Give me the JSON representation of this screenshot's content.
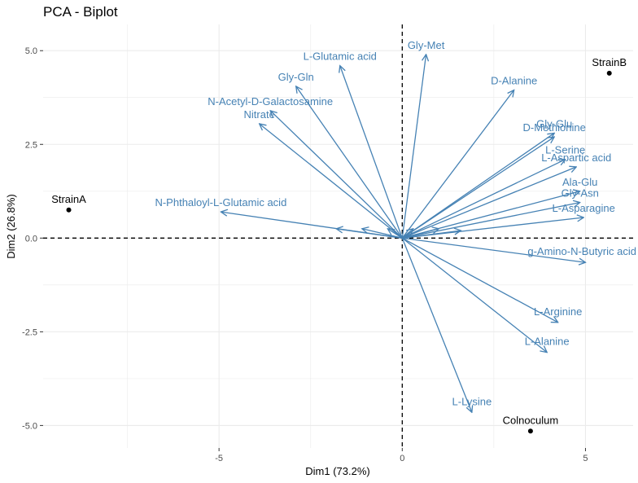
{
  "chart_data": {
    "type": "scatter",
    "title": "PCA - Biplot",
    "xlabel": "Dim1 (73.2%)",
    "ylabel": "Dim2 (26.8%)",
    "xlim": [
      -9.8,
      6.3
    ],
    "ylim": [
      -5.6,
      5.7
    ],
    "x_ticks": [
      -5,
      0,
      5
    ],
    "x_tick_labels": [
      "-5",
      "0",
      "5"
    ],
    "y_ticks": [
      -5.0,
      -2.5,
      0.0,
      2.5,
      5.0
    ],
    "y_tick_labels": [
      "-5.0",
      "-2.5",
      "0.0",
      "2.5",
      "5.0"
    ],
    "grid": true,
    "reference_lines": {
      "x": 0,
      "y": 0,
      "style": "dashed"
    },
    "colors": {
      "variables": "#4682b4",
      "individuals": "#000000",
      "grid": "#ebebeb",
      "reference": "#000000"
    },
    "individuals": [
      {
        "name": "StrainA",
        "x": -9.1,
        "y": 0.75
      },
      {
        "name": "StrainB",
        "x": 5.65,
        "y": 4.4
      },
      {
        "name": "Colnoculum",
        "x": 3.5,
        "y": -5.15
      }
    ],
    "variables": [
      {
        "name": "Gly-Met",
        "x": 0.65,
        "y": 4.9
      },
      {
        "name": "L-Glutamic acid",
        "x": -1.7,
        "y": 4.6
      },
      {
        "name": "Gly-Gln",
        "x": -2.9,
        "y": 4.05
      },
      {
        "name": "N-Acetyl-D-Galactosamine",
        "x": -3.6,
        "y": 3.4
      },
      {
        "name": "Nitrate",
        "x": -3.9,
        "y": 3.05
      },
      {
        "name": "D-Alanine",
        "x": 3.05,
        "y": 3.95
      },
      {
        "name": "Gly-Glu",
        "x": 4.15,
        "y": 2.8
      },
      {
        "name": "D-Methionine",
        "x": 4.15,
        "y": 2.7
      },
      {
        "name": "L-Serine",
        "x": 4.45,
        "y": 2.1
      },
      {
        "name": "L-Aspartic acid",
        "x": 4.75,
        "y": 1.9
      },
      {
        "name": "Ala-Glu",
        "x": 4.85,
        "y": 1.25
      },
      {
        "name": "Gly-Asn",
        "x": 4.85,
        "y": 0.95
      },
      {
        "name": "L-Asparagine",
        "x": 4.95,
        "y": 0.55
      },
      {
        "name": "g-Amino-N-Butyric acid",
        "x": 5.0,
        "y": -0.65
      },
      {
        "name": "L-Arginine",
        "x": 4.25,
        "y": -2.25
      },
      {
        "name": "L-Alanine",
        "x": 3.95,
        "y": -3.05
      },
      {
        "name": "L-Lysine",
        "x": 1.9,
        "y": -4.65
      },
      {
        "name": "N-Phthaloyl-L-Glutamic acid",
        "x": -4.95,
        "y": 0.7
      }
    ],
    "arrows_near_origin": [
      {
        "x": -1.8,
        "y": 0.25
      },
      {
        "x": -1.1,
        "y": 0.25
      },
      {
        "x": -0.4,
        "y": 0.25
      },
      {
        "x": 0.3,
        "y": 0.25
      },
      {
        "x": 1.0,
        "y": 0.25
      },
      {
        "x": 1.6,
        "y": 0.2
      }
    ]
  }
}
